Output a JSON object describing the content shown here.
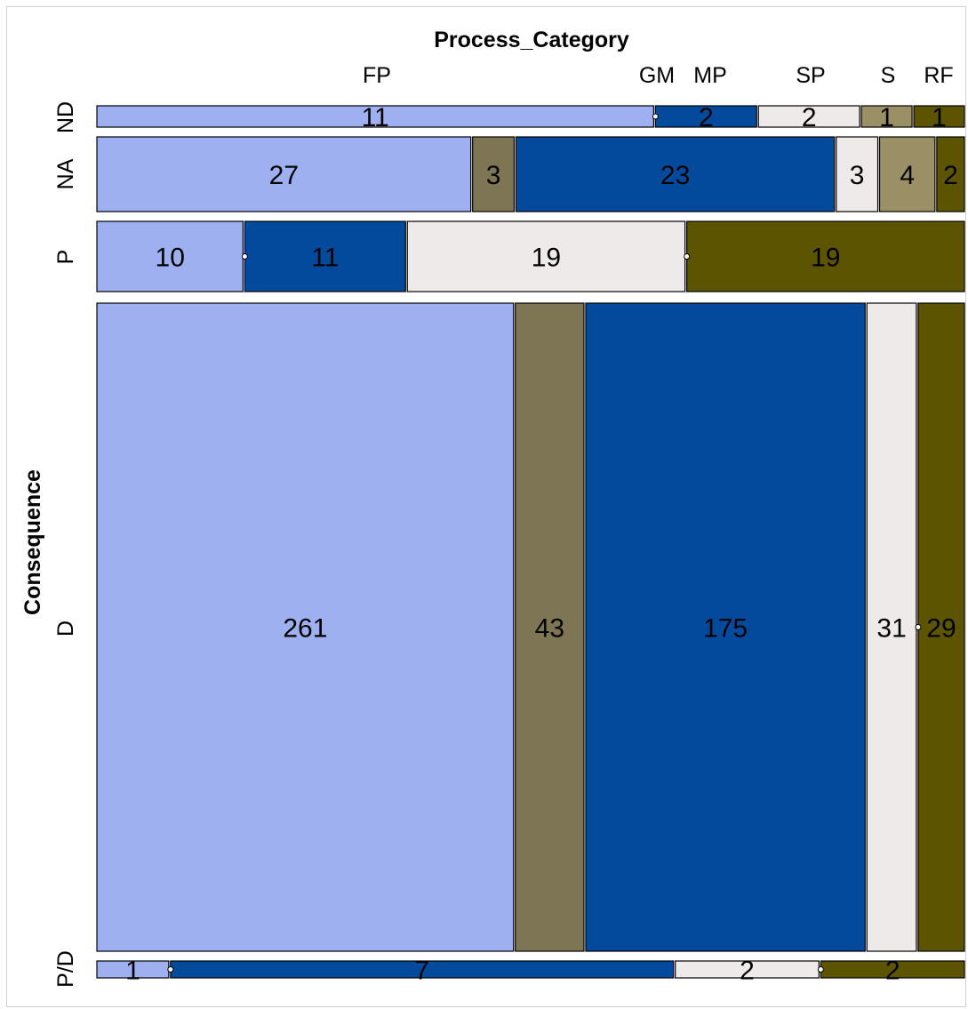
{
  "chart_data": {
    "type": "mosaic",
    "title": "Process_Category",
    "ylabel": "Consequence",
    "column_labels": [
      "FP",
      "GM",
      "MP",
      "SP",
      "S",
      "RF"
    ],
    "rows": [
      {
        "label": "ND",
        "cells": [
          {
            "category": "FP",
            "value": 11
          },
          {
            "category": "GM",
            "value": 0
          },
          {
            "category": "MP",
            "value": 2
          },
          {
            "category": "SP",
            "value": 2
          },
          {
            "category": "S",
            "value": 1
          },
          {
            "category": "RF",
            "value": 1
          }
        ]
      },
      {
        "label": "NA",
        "cells": [
          {
            "category": "FP",
            "value": 27
          },
          {
            "category": "GM",
            "value": 3
          },
          {
            "category": "MP",
            "value": 23
          },
          {
            "category": "SP",
            "value": 3
          },
          {
            "category": "S",
            "value": 4
          },
          {
            "category": "RF",
            "value": 2
          }
        ]
      },
      {
        "label": "P",
        "cells": [
          {
            "category": "FP",
            "value": 10
          },
          {
            "category": "GM",
            "value": 0
          },
          {
            "category": "MP",
            "value": 11
          },
          {
            "category": "SP",
            "value": 19
          },
          {
            "category": "S",
            "value": 0
          },
          {
            "category": "RF",
            "value": 19
          }
        ]
      },
      {
        "label": "D",
        "cells": [
          {
            "category": "FP",
            "value": 261
          },
          {
            "category": "GM",
            "value": 43
          },
          {
            "category": "MP",
            "value": 175
          },
          {
            "category": "SP",
            "value": 31
          },
          {
            "category": "S",
            "value": 0
          },
          {
            "category": "RF",
            "value": 29
          }
        ]
      },
      {
        "label": "P/D",
        "cells": [
          {
            "category": "FP",
            "value": 1
          },
          {
            "category": "GM",
            "value": 0
          },
          {
            "category": "MP",
            "value": 7
          },
          {
            "category": "SP",
            "value": 2
          },
          {
            "category": "S",
            "value": 0
          },
          {
            "category": "RF",
            "value": 2
          }
        ]
      }
    ],
    "colors": {
      "FP": "#9fb0f0",
      "GM": "#7d7553",
      "MP": "#044a9c",
      "SP": "#efeaea",
      "S": "#9a8f65",
      "RF": "#5c5400"
    }
  }
}
